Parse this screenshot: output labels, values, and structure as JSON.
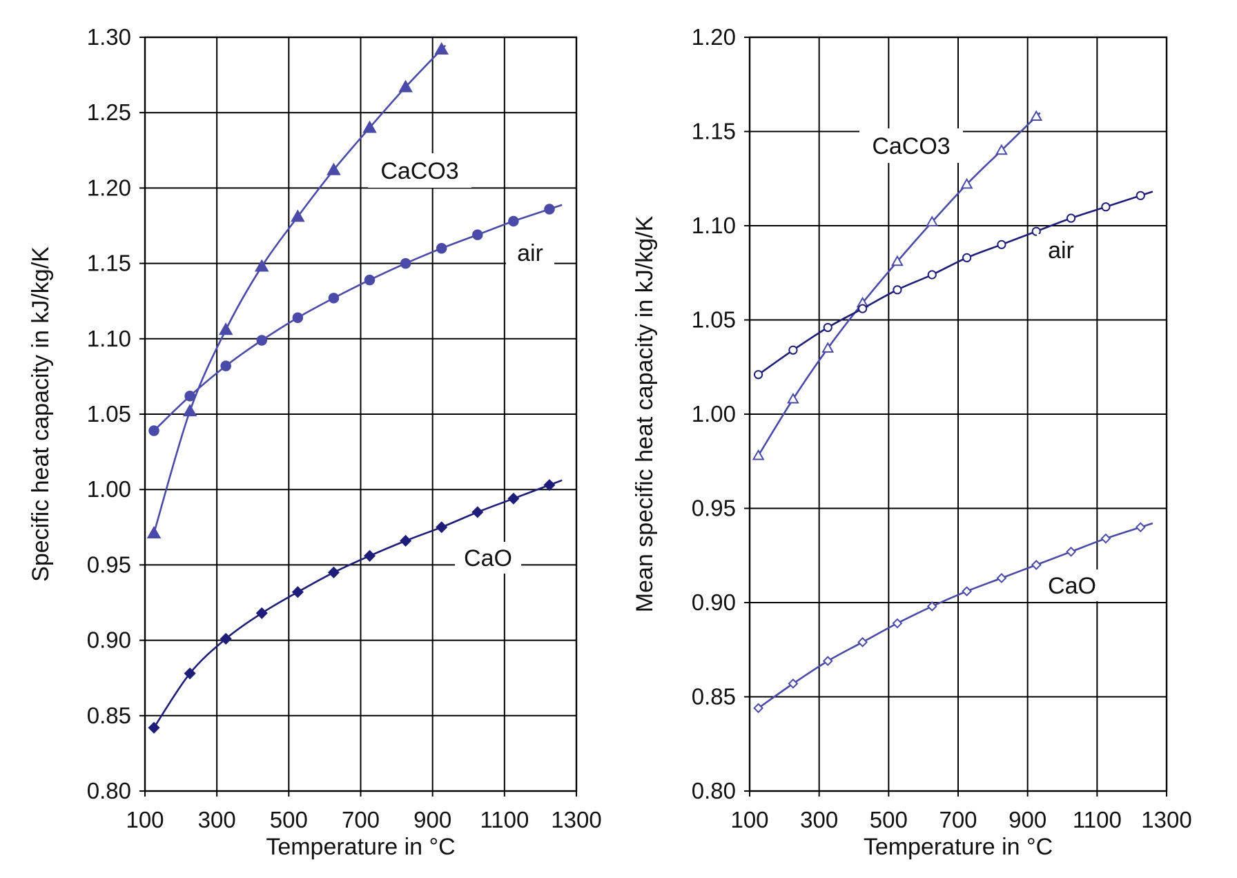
{
  "colors": {
    "light_series": "#4a4aa8",
    "dark_series": "#1e1e7a",
    "grid": "#000000"
  },
  "chart_data": [
    {
      "type": "line",
      "xlabel": "Temperature in °C",
      "ylabel": "Specific heat capacity in kJ/kg/K",
      "xlim": [
        100,
        1300
      ],
      "ylim": [
        0.8,
        1.3
      ],
      "x_ticks": [
        "100",
        "300",
        "500",
        "700",
        "900",
        "1100",
        "1300"
      ],
      "y_ticks": [
        "0.80",
        "0.85",
        "0.90",
        "0.95",
        "1.00",
        "1.05",
        "1.10",
        "1.15",
        "1.20",
        "1.25",
        "1.30"
      ],
      "grid": true,
      "marker_fill": "filled",
      "series": [
        {
          "name": "CaCO3",
          "marker": "triangle",
          "color": "#4a4aa8",
          "x": [
            125,
            225,
            325,
            425,
            525,
            625,
            725,
            825,
            925
          ],
          "y": [
            0.971,
            1.052,
            1.106,
            1.148,
            1.181,
            1.212,
            1.24,
            1.267,
            1.292
          ]
        },
        {
          "name": "air",
          "marker": "circle",
          "color": "#4a4aa8",
          "x": [
            125,
            225,
            325,
            425,
            525,
            625,
            725,
            825,
            925,
            1025,
            1125,
            1225
          ],
          "y": [
            1.039,
            1.062,
            1.082,
            1.099,
            1.114,
            1.127,
            1.139,
            1.15,
            1.16,
            1.169,
            1.178,
            1.186
          ]
        },
        {
          "name": "CaO",
          "marker": "diamond",
          "color": "#1e1e7a",
          "x": [
            125,
            225,
            325,
            425,
            525,
            625,
            725,
            825,
            925,
            1025,
            1125,
            1225
          ],
          "y": [
            0.842,
            0.878,
            0.901,
            0.918,
            0.932,
            0.945,
            0.956,
            0.966,
            0.975,
            0.985,
            0.994,
            1.003
          ]
        }
      ]
    },
    {
      "type": "line",
      "xlabel": "Temperature in °C",
      "ylabel": "Mean specific heat capacity in kJ/kg/K",
      "xlim": [
        100,
        1300
      ],
      "ylim": [
        0.8,
        1.2
      ],
      "x_ticks": [
        "100",
        "300",
        "500",
        "700",
        "900",
        "1100",
        "1300"
      ],
      "y_ticks": [
        "0.80",
        "0.85",
        "0.90",
        "0.95",
        "1.00",
        "1.05",
        "1.10",
        "1.15",
        "1.20"
      ],
      "grid": true,
      "marker_fill": "hollow",
      "series": [
        {
          "name": "CaCO3",
          "marker": "triangle",
          "color": "#4a4aa8",
          "x": [
            125,
            225,
            325,
            425,
            525,
            625,
            725,
            825,
            925
          ],
          "y": [
            0.978,
            1.008,
            1.035,
            1.059,
            1.081,
            1.102,
            1.122,
            1.14,
            1.158
          ]
        },
        {
          "name": "air",
          "marker": "circle",
          "color": "#1e1e7a",
          "x": [
            125,
            225,
            325,
            425,
            525,
            625,
            725,
            825,
            925,
            1025,
            1125,
            1225
          ],
          "y": [
            1.021,
            1.034,
            1.046,
            1.056,
            1.066,
            1.074,
            1.083,
            1.09,
            1.097,
            1.104,
            1.11,
            1.116
          ]
        },
        {
          "name": "CaO",
          "marker": "diamond",
          "color": "#4a4aa8",
          "x": [
            125,
            225,
            325,
            425,
            525,
            625,
            725,
            825,
            925,
            1025,
            1125,
            1225
          ],
          "y": [
            0.844,
            0.857,
            0.869,
            0.879,
            0.889,
            0.898,
            0.906,
            0.913,
            0.92,
            0.927,
            0.934,
            0.94
          ]
        }
      ]
    }
  ]
}
